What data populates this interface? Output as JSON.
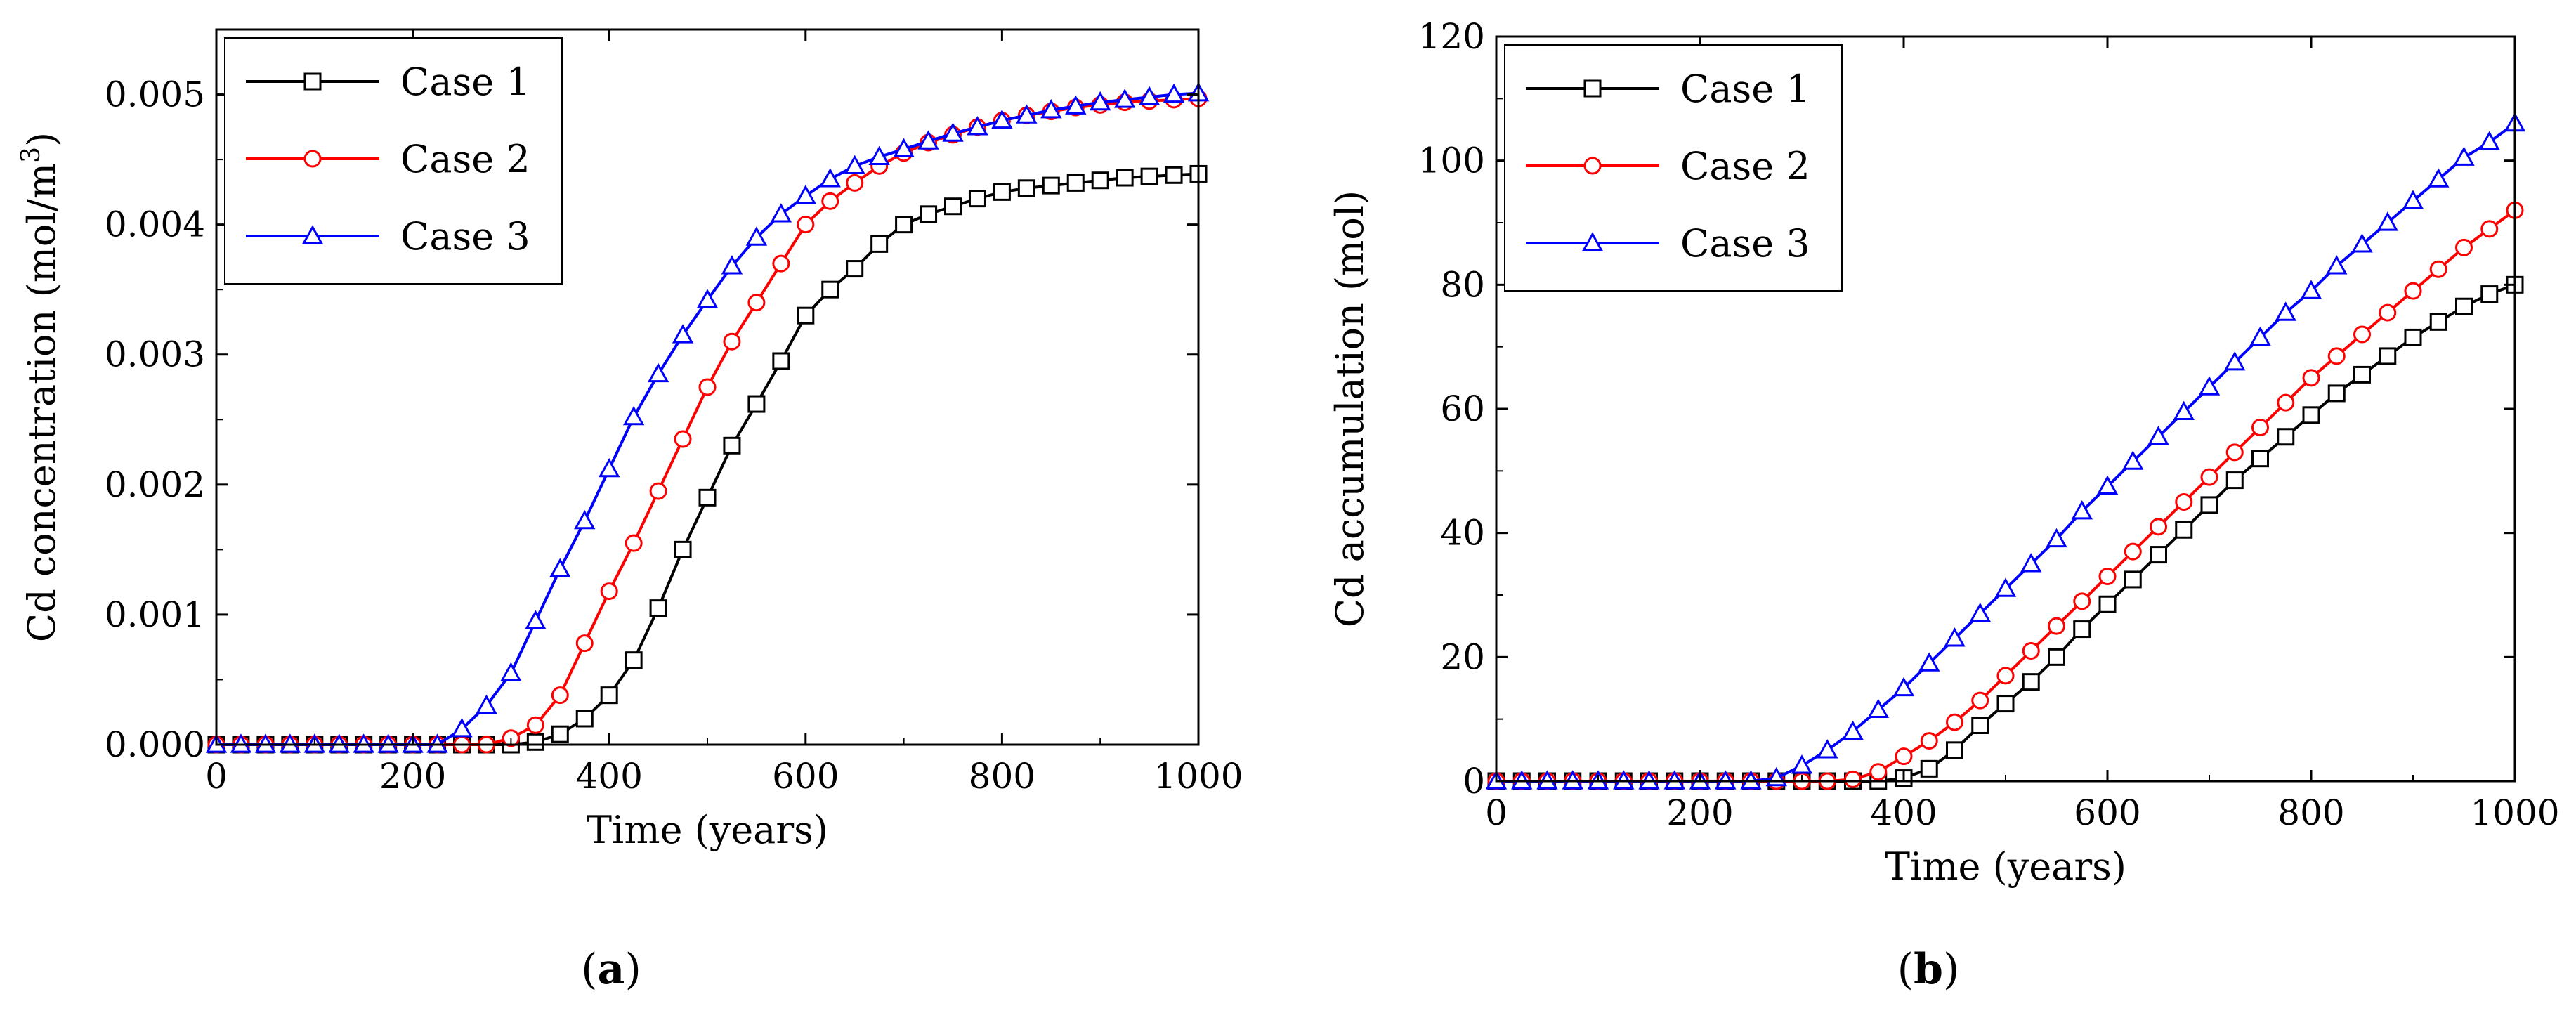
{
  "figure": {
    "panel_a_label": "a",
    "panel_b_label": "b"
  },
  "chart_data": [
    {
      "type": "line",
      "panel": "a",
      "title": "",
      "xlabel": "Time (years)",
      "ylabel_prefix": "Cd concentration (mol/m",
      "ylabel_sup": "3",
      "ylabel_suffix": ")",
      "xlim": [
        0,
        1000
      ],
      "ylim": [
        0,
        0.0055
      ],
      "xticks": [
        0,
        200,
        400,
        600,
        800,
        1000
      ],
      "xtick_labels": [
        "0",
        "200",
        "400",
        "600",
        "800",
        "1000"
      ],
      "yticks": [
        0,
        0.001,
        0.002,
        0.003,
        0.004,
        0.005
      ],
      "ytick_labels": [
        "0.000",
        "0.001",
        "0.002",
        "0.003",
        "0.004",
        "0.005"
      ],
      "grid": false,
      "legend_position": "top-left",
      "series": [
        {
          "name": "Case 1",
          "color": "#000000",
          "marker": "square",
          "x": [
            0,
            25,
            50,
            75,
            100,
            125,
            150,
            175,
            200,
            225,
            250,
            275,
            300,
            325,
            350,
            375,
            400,
            425,
            450,
            475,
            500,
            525,
            550,
            575,
            600,
            625,
            650,
            675,
            700,
            725,
            750,
            775,
            800,
            825,
            850,
            875,
            900,
            925,
            950,
            975,
            1000
          ],
          "y": [
            0,
            0,
            0,
            0,
            0,
            0,
            0,
            0,
            0,
            0,
            0,
            0,
            0,
            2e-05,
            8e-05,
            0.0002,
            0.00038,
            0.00065,
            0.00105,
            0.0015,
            0.0019,
            0.0023,
            0.00262,
            0.00295,
            0.0033,
            0.0035,
            0.00366,
            0.00385,
            0.004,
            0.00408,
            0.00414,
            0.0042,
            0.00425,
            0.00428,
            0.0043,
            0.00432,
            0.00434,
            0.00436,
            0.00437,
            0.00438,
            0.00439
          ]
        },
        {
          "name": "Case 2",
          "color": "#ff0000",
          "marker": "circle",
          "x": [
            0,
            25,
            50,
            75,
            100,
            125,
            150,
            175,
            200,
            225,
            250,
            275,
            300,
            325,
            350,
            375,
            400,
            425,
            450,
            475,
            500,
            525,
            550,
            575,
            600,
            625,
            650,
            675,
            700,
            725,
            750,
            775,
            800,
            825,
            850,
            875,
            900,
            925,
            950,
            975,
            1000
          ],
          "y": [
            0,
            0,
            0,
            0,
            0,
            0,
            0,
            0,
            0,
            0,
            0,
            0,
            5e-05,
            0.00015,
            0.00038,
            0.00078,
            0.00118,
            0.00155,
            0.00195,
            0.00235,
            0.00275,
            0.0031,
            0.0034,
            0.0037,
            0.004,
            0.00418,
            0.00432,
            0.00445,
            0.00455,
            0.00463,
            0.00469,
            0.00475,
            0.0048,
            0.00484,
            0.00487,
            0.0049,
            0.00492,
            0.00494,
            0.00495,
            0.00496,
            0.00497
          ]
        },
        {
          "name": "Case 3",
          "color": "#0000ff",
          "marker": "triangle",
          "x": [
            0,
            25,
            50,
            75,
            100,
            125,
            150,
            175,
            200,
            225,
            250,
            275,
            300,
            325,
            350,
            375,
            400,
            425,
            450,
            475,
            500,
            525,
            550,
            575,
            600,
            625,
            650,
            675,
            700,
            725,
            750,
            775,
            800,
            825,
            850,
            875,
            900,
            925,
            950,
            975,
            1000
          ],
          "y": [
            0,
            0,
            0,
            0,
            0,
            0,
            0,
            0,
            0,
            0,
            0.00012,
            0.0003,
            0.00055,
            0.00095,
            0.00135,
            0.00172,
            0.00212,
            0.00252,
            0.00285,
            0.00315,
            0.00342,
            0.00368,
            0.0039,
            0.00408,
            0.00422,
            0.00435,
            0.00445,
            0.00452,
            0.00458,
            0.00464,
            0.0047,
            0.00475,
            0.0048,
            0.00484,
            0.00488,
            0.00491,
            0.00494,
            0.00496,
            0.00498,
            0.005,
            0.00501
          ]
        }
      ]
    },
    {
      "type": "line",
      "panel": "b",
      "title": "",
      "xlabel": "Time (years)",
      "ylabel": "Cd accumulation (mol)",
      "xlim": [
        0,
        1000
      ],
      "ylim": [
        0,
        120
      ],
      "xticks": [
        0,
        200,
        400,
        600,
        800,
        1000
      ],
      "xtick_labels": [
        "0",
        "200",
        "400",
        "600",
        "800",
        "1000"
      ],
      "yticks": [
        0,
        20,
        40,
        60,
        80,
        100,
        120
      ],
      "ytick_labels": [
        "0",
        "20",
        "40",
        "60",
        "80",
        "100",
        "120"
      ],
      "grid": false,
      "legend_position": "top-left",
      "series": [
        {
          "name": "Case 1",
          "color": "#000000",
          "marker": "square",
          "x": [
            0,
            25,
            50,
            75,
            100,
            125,
            150,
            175,
            200,
            225,
            250,
            275,
            300,
            325,
            350,
            375,
            400,
            425,
            450,
            475,
            500,
            525,
            550,
            575,
            600,
            625,
            650,
            675,
            700,
            725,
            750,
            775,
            800,
            825,
            850,
            875,
            900,
            925,
            950,
            975,
            1000
          ],
          "y": [
            0,
            0,
            0,
            0,
            0,
            0,
            0,
            0,
            0,
            0,
            0,
            0,
            0,
            0,
            0,
            0,
            0.5,
            2,
            5,
            9,
            12.5,
            16,
            20,
            24.5,
            28.5,
            32.5,
            36.5,
            40.5,
            44.5,
            48.5,
            52,
            55.5,
            59,
            62.5,
            65.5,
            68.5,
            71.5,
            74,
            76.5,
            78.5,
            80
          ]
        },
        {
          "name": "Case 2",
          "color": "#ff0000",
          "marker": "circle",
          "x": [
            0,
            25,
            50,
            75,
            100,
            125,
            150,
            175,
            200,
            225,
            250,
            275,
            300,
            325,
            350,
            375,
            400,
            425,
            450,
            475,
            500,
            525,
            550,
            575,
            600,
            625,
            650,
            675,
            700,
            725,
            750,
            775,
            800,
            825,
            850,
            875,
            900,
            925,
            950,
            975,
            1000
          ],
          "y": [
            0,
            0,
            0,
            0,
            0,
            0,
            0,
            0,
            0,
            0,
            0,
            0,
            0,
            0,
            0.3,
            1.5,
            4,
            6.5,
            9.5,
            13,
            17,
            21,
            25,
            29,
            33,
            37,
            41,
            45,
            49,
            53,
            57,
            61,
            65,
            68.5,
            72,
            75.5,
            79,
            82.5,
            86,
            89,
            92
          ]
        },
        {
          "name": "Case 3",
          "color": "#0000ff",
          "marker": "triangle",
          "x": [
            0,
            25,
            50,
            75,
            100,
            125,
            150,
            175,
            200,
            225,
            250,
            275,
            300,
            325,
            350,
            375,
            400,
            425,
            450,
            475,
            500,
            525,
            550,
            575,
            600,
            625,
            650,
            675,
            700,
            725,
            750,
            775,
            800,
            825,
            850,
            875,
            900,
            925,
            950,
            975,
            1000
          ],
          "y": [
            0,
            0,
            0,
            0,
            0,
            0,
            0,
            0,
            0,
            0,
            0,
            0.5,
            2.5,
            5,
            8,
            11.5,
            15,
            19,
            23,
            27,
            31,
            35,
            39,
            43.5,
            47.5,
            51.5,
            55.5,
            59.5,
            63.5,
            67.5,
            71.5,
            75.5,
            79,
            83,
            86.5,
            90,
            93.5,
            97,
            100.5,
            103,
            106
          ]
        }
      ]
    }
  ]
}
